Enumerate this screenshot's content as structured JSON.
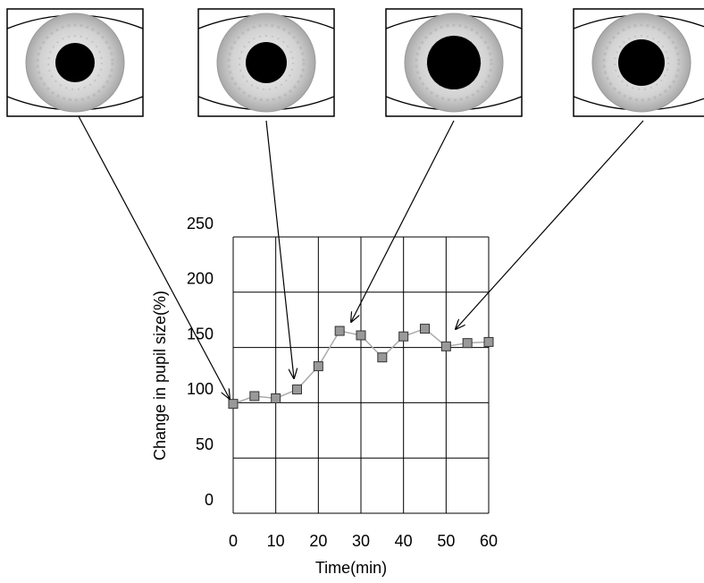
{
  "chart_data": {
    "type": "line",
    "xlabel": "Time(min)",
    "ylabel": "Change in pupil size(%)",
    "x": [
      0,
      5,
      10,
      15,
      20,
      25,
      30,
      35,
      40,
      45,
      50,
      55,
      60
    ],
    "values": [
      99,
      106,
      104,
      112,
      133,
      165,
      161,
      141,
      160,
      167,
      151,
      154,
      155
    ],
    "color": "#aaaaaa",
    "marker_color": "#999999",
    "xlim": [
      0,
      60
    ],
    "xticks": [
      0,
      10,
      20,
      30,
      40,
      50,
      60
    ],
    "ylim": [
      0,
      250
    ],
    "yticks": [
      0,
      50,
      100,
      150,
      200,
      250
    ],
    "grid": true
  }
}
